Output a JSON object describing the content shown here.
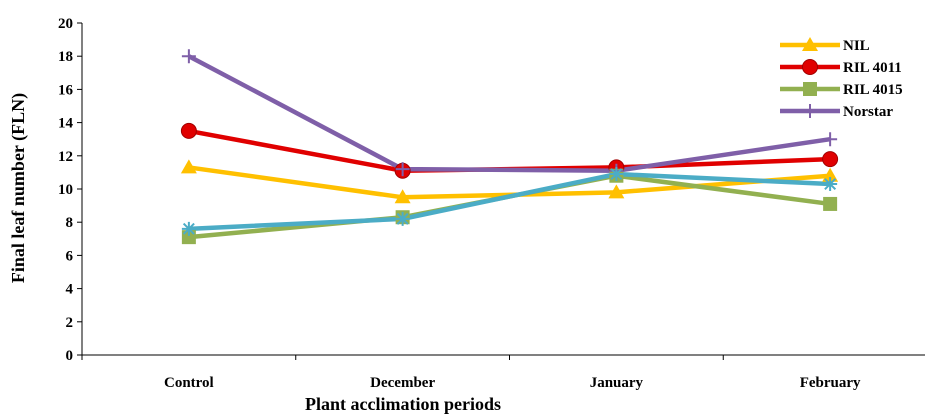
{
  "chart_data": {
    "type": "line",
    "title": "",
    "xlabel": "Plant acclimation periods",
    "ylabel": "Final leaf number (FLN)",
    "categories": [
      "Control",
      "December",
      "January",
      "February"
    ],
    "ylim": [
      0,
      20
    ],
    "yticks": [
      0,
      2,
      4,
      6,
      8,
      10,
      12,
      14,
      16,
      18,
      20
    ],
    "grid": false,
    "legend_position": "top-right",
    "series": [
      {
        "name": "NIL",
        "values": [
          11.3,
          9.5,
          9.8,
          10.8
        ],
        "color": "#FFC000",
        "marker": "triangle",
        "in_legend": true
      },
      {
        "name": "RIL 4011",
        "values": [
          13.5,
          11.1,
          11.3,
          11.8
        ],
        "color": "#E00000",
        "marker": "circle",
        "in_legend": true
      },
      {
        "name": "RIL 4015",
        "values": [
          7.1,
          8.3,
          10.8,
          9.1
        ],
        "color": "#92B050",
        "marker": "square",
        "in_legend": true
      },
      {
        "name": "Norstar",
        "values": [
          18.0,
          11.2,
          11.1,
          13.0
        ],
        "color": "#7F5FA8",
        "marker": "plus",
        "in_legend": true
      },
      {
        "name": "",
        "values": [
          7.6,
          8.2,
          10.9,
          10.3
        ],
        "color": "#4BACC6",
        "marker": "asterisk",
        "in_legend": false
      }
    ]
  }
}
